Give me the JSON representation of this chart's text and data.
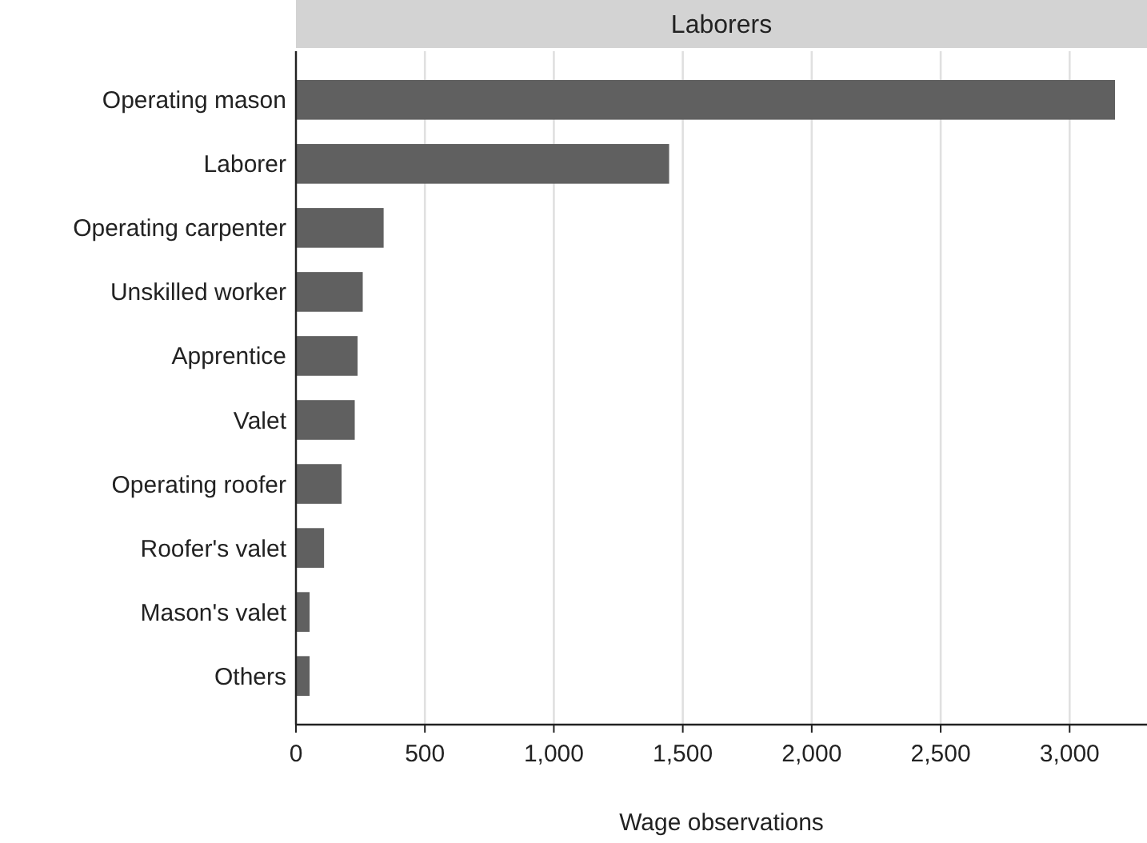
{
  "chart_data": {
    "type": "bar",
    "orientation": "horizontal",
    "title": "Laborers",
    "xlabel": "Wage observations",
    "categories": [
      "Operating mason",
      "Laborer",
      "Operating carpenter",
      "Unskilled worker",
      "Apprentice",
      "Valet",
      "Operating roofer",
      "Roofer's valet",
      "Mason's valet",
      "Others"
    ],
    "values": [
      3176,
      1447,
      340,
      259,
      239,
      228,
      177,
      109,
      53,
      53
    ],
    "color": "#606060",
    "xlim": [
      0,
      3300
    ],
    "xticks": [
      0,
      500,
      {
        "value": 1000,
        "label": "1,000"
      },
      {
        "value": 1500,
        "label": "1,500"
      },
      {
        "value": 2000,
        "label": "2,000"
      },
      {
        "value": 2500,
        "label": "2,500"
      },
      {
        "value": 3000,
        "label": "3,000"
      }
    ],
    "grid": "x"
  }
}
